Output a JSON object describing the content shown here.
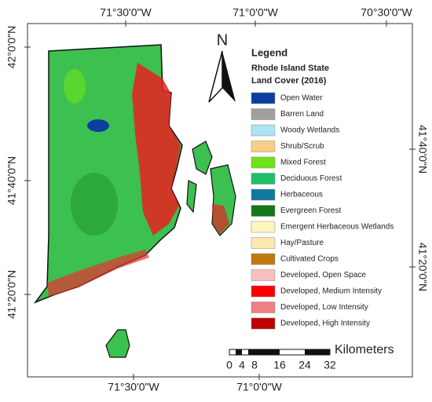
{
  "graticule": {
    "top": [
      "71°30'0\"W",
      "71°0'0\"W",
      "70°30'0\"W"
    ],
    "bottom": [
      "71°30'0\"W",
      "71°0'0\"W"
    ],
    "left": [
      "42°0'0\"N",
      "41°40'0\"N",
      "41°20'0\"N"
    ],
    "right": [
      "41°40'0\"N",
      "41°20'0\"N"
    ]
  },
  "north_arrow": "N",
  "legend": {
    "title": "Legend",
    "subtitle": [
      "Rhode Island State",
      "Land Cover (2016)"
    ],
    "items": [
      {
        "label": "Open Water",
        "color": "#0a3fa0"
      },
      {
        "label": "Barren Land",
        "color": "#a0a0a0"
      },
      {
        "label": "Woody Wetlands",
        "color": "#b0e2f5"
      },
      {
        "label": "Shrub/Scrub",
        "color": "#f8cf85"
      },
      {
        "label": "Mixed Forest",
        "color": "#6ee21a"
      },
      {
        "label": "Deciduous Forest",
        "color": "#1fbf66"
      },
      {
        "label": "Herbaceous",
        "color": "#1078a0"
      },
      {
        "label": "Evergreen Forest",
        "color": "#127a16"
      },
      {
        "label": "Emergent Herbaceous Wetlands",
        "color": "#fdf7bd"
      },
      {
        "label": "Hay/Pasture",
        "color": "#fde8b0"
      },
      {
        "label": "Cultivated Crops",
        "color": "#c07a10"
      },
      {
        "label": "Developed, Open Space",
        "color": "#f8c0c0"
      },
      {
        "label": "Developed, Medium Intensity",
        "color": "#f80000"
      },
      {
        "label": "Developed, Low Intensity",
        "color": "#f08080"
      },
      {
        "label": "Developed, High Intensity",
        "color": "#c00000"
      }
    ]
  },
  "scale_bar": {
    "unit": "Kilometers",
    "ticks": [
      0,
      4,
      8,
      16,
      24,
      32
    ]
  }
}
